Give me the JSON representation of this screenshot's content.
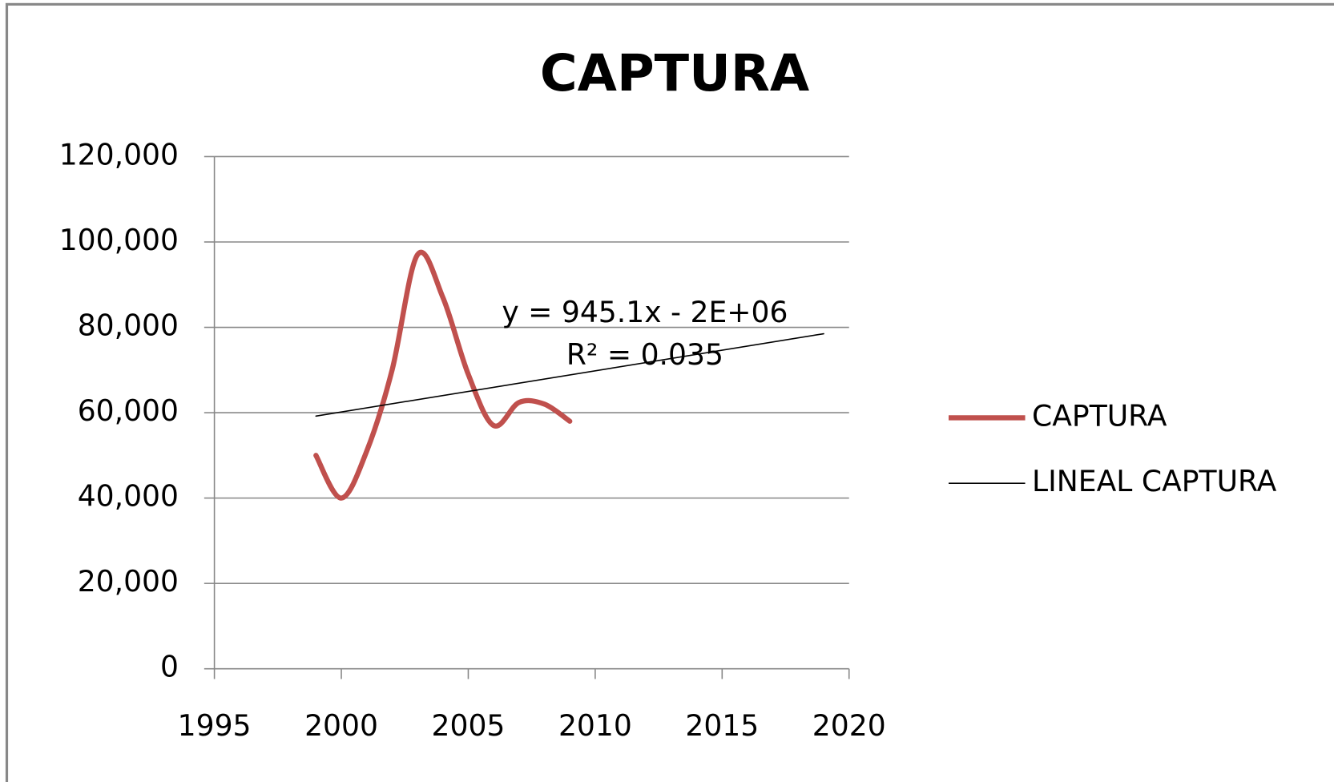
{
  "chart_data": {
    "type": "line",
    "title": "CAPTURA",
    "xlim": [
      1995,
      2020
    ],
    "xticks": [
      1995,
      2000,
      2005,
      2010,
      2015,
      2020
    ],
    "ylim": [
      0,
      120000
    ],
    "yticks": [
      0,
      {
        "value": 20000,
        "label": "20,000"
      },
      {
        "value": 40000,
        "label": "40,000"
      },
      {
        "value": 60000,
        "label": "60,000"
      },
      {
        "value": 80000,
        "label": "80,000"
      },
      {
        "value": 100000,
        "label": "100,000"
      },
      {
        "value": 120000,
        "label": "120,000"
      }
    ],
    "grid": true,
    "legend": "right",
    "series": [
      {
        "name": "CAPTURA",
        "color": "#c0504d",
        "smooth": true,
        "x": [
          1999,
          2000,
          2001,
          2002,
          2003,
          2004,
          2005,
          2006,
          2007,
          2008,
          2009
        ],
        "values": [
          50000,
          40000,
          51000,
          70000,
          97000,
          87000,
          69000,
          57000,
          62400,
          62000,
          58000
        ]
      },
      {
        "name": "LINEAL CAPTURA",
        "color": "#000000",
        "smooth": false,
        "x": [
          1999,
          2019
        ],
        "values": [
          59200,
          78500
        ]
      }
    ],
    "annotations": [
      "y = 945.1x - 2E+06",
      "R² = 0.035"
    ]
  }
}
